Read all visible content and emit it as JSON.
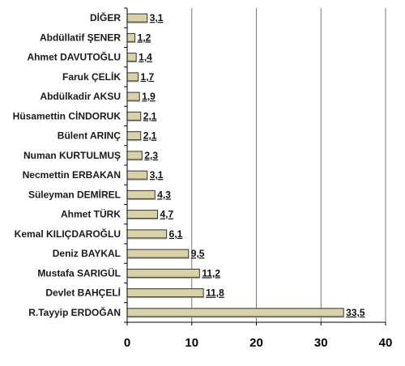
{
  "chart_data": {
    "type": "bar",
    "orientation": "horizontal",
    "title": "",
    "xlabel": "",
    "ylabel": "",
    "categories": [
      "DİĞER",
      "Abdüllatif ŞENER",
      "Ahmet DAVUTOĞLU",
      "Faruk ÇELİK",
      "Abdülkadir AKSU",
      "Hüsamettin CİNDORUK",
      "Bülent ARINÇ",
      "Numan KURTULMUŞ",
      "Necmettin ERBAKAN",
      "Süleyman DEMİREL",
      "Ahmet TÜRK",
      "Kemal KILIÇDAROĞLU",
      "Deniz BAYKAL",
      "Mustafa SARIGÜL",
      "Devlet BAHÇELİ",
      "R.Tayyip ERDOĞAN"
    ],
    "values": [
      3.1,
      1.2,
      1.4,
      1.7,
      1.9,
      2.1,
      2.1,
      2.3,
      3.1,
      4.3,
      4.7,
      6.1,
      9.5,
      11.2,
      11.8,
      33.5
    ],
    "value_labels": [
      "3,1",
      "1,2",
      "1,4",
      "1,7",
      "1,9",
      "2,1",
      "2,1",
      "2,3",
      "3,1",
      "4,3",
      "4,7",
      "6,1",
      "9,5",
      "11,2",
      "11,8",
      "33,5"
    ],
    "xlim": [
      0,
      40
    ],
    "x_ticks": [
      0,
      10,
      20,
      30,
      40
    ],
    "x_tick_labels": [
      "0",
      "10",
      "20",
      "30",
      "40"
    ],
    "grid": true,
    "bar_color": "#d9d1a8",
    "bar_edge_color": "#333333",
    "grid_color": "#7a7a7a"
  }
}
